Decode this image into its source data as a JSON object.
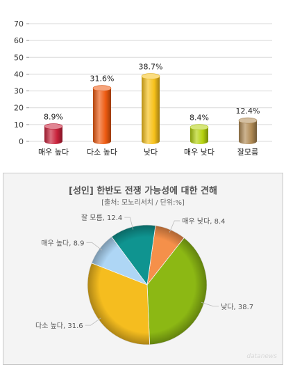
{
  "chart_data": [
    {
      "type": "bar",
      "categories": [
        "매우 높다",
        "다소 높다",
        "낮다",
        "매우 낮다",
        "잘모름"
      ],
      "values": [
        8.9,
        31.6,
        38.7,
        8.4,
        12.4
      ],
      "value_labels": [
        "8.9%",
        "31.6%",
        "38.7%",
        "8.4%",
        "12.4%"
      ],
      "colors": [
        "#c8213a",
        "#ee5a10",
        "#f7c11a",
        "#b4d20e",
        "#b08a54"
      ],
      "yticks": [
        "0",
        "10",
        "20",
        "30",
        "40",
        "50",
        "60",
        "70"
      ],
      "ylim": [
        0,
        70
      ],
      "grid": true
    },
    {
      "type": "pie",
      "title": "[성인] 한반도 전쟁 가능성에 대한 견해",
      "subtitle": "[출처: 모노리서치 / 단위:%]",
      "slices": [
        {
          "label": "매우 낮다, 8.4",
          "value": 8.4,
          "color": "#f5904a"
        },
        {
          "label": "낮다, 38.7",
          "value": 38.7,
          "color": "#8cb814"
        },
        {
          "label": "다소 높다, 31.6",
          "value": 31.6,
          "color": "#f5bd1f"
        },
        {
          "label": "매우 높다, 8.9",
          "value": 8.9,
          "color": "#aed6f5"
        },
        {
          "label": "잘 모름, 12.4",
          "value": 12.4,
          "color": "#0f9490"
        }
      ]
    }
  ],
  "watermark": "datanews"
}
